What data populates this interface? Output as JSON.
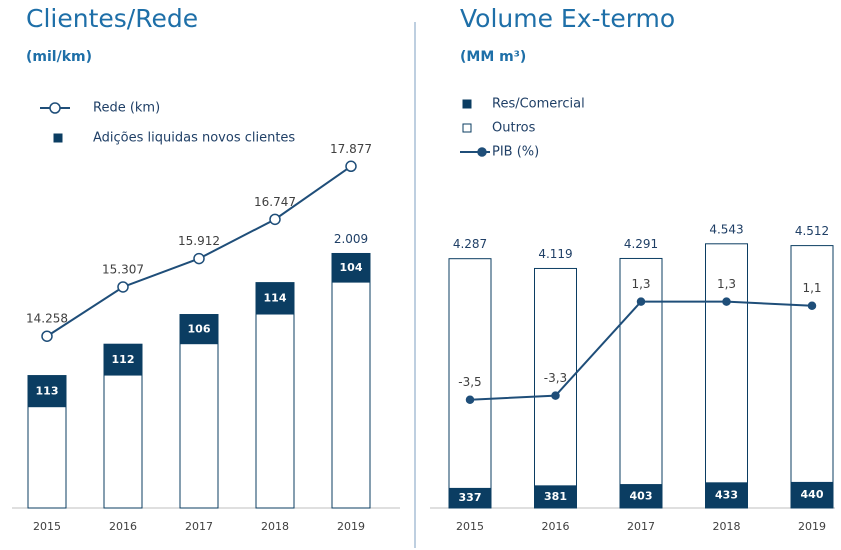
{
  "chart_data": [
    {
      "type": "bar",
      "title": "Clientes/Rede",
      "subtitle": "(mil/km)",
      "categories": [
        "2015",
        "2016",
        "2017",
        "2018",
        "2019"
      ],
      "totals": {
        "color": "#ffffff",
        "values": [
          1573,
          1685,
          1791,
          1905,
          2009
        ],
        "value_labels": [
          null,
          null,
          null,
          null,
          "2.009"
        ]
      },
      "series": [
        {
          "name": "Rede (km)",
          "type": "line",
          "axis": "y2",
          "marker": "hollow",
          "color": "#1f4e79",
          "values": [
            14258,
            15307,
            15912,
            16747,
            17877
          ],
          "value_labels": [
            "14.258",
            "15.307",
            "15.912",
            "16.747",
            "17.877"
          ]
        },
        {
          "name": "Adições liquidas novos clientes",
          "type": "bar",
          "color": "#0b3d62",
          "values": [
            113,
            112,
            106,
            114,
            104
          ]
        }
      ],
      "ylim": [
        1100,
        2450
      ],
      "y2lim": [
        10600,
        18650
      ]
    },
    {
      "type": "bar",
      "title": "Volume Ex-termo",
      "subtitle": "(MM m³)",
      "categories": [
        "2015",
        "2016",
        "2017",
        "2018",
        "2019"
      ],
      "totals": {
        "values": [
          4287,
          4119,
          4291,
          4543,
          4512
        ],
        "value_labels": [
          "4.287",
          "4.119",
          "4.291",
          "4.543",
          "4.512"
        ]
      },
      "series": [
        {
          "name": "Res/Comercial",
          "type": "bar",
          "color": "#0b3d62",
          "values": [
            337,
            381,
            403,
            433,
            440
          ]
        },
        {
          "name": "Outros",
          "type": "bar",
          "color": "#ffffff",
          "values": [
            3950,
            3738,
            3888,
            4110,
            4072
          ]
        },
        {
          "name": "PIB (%)",
          "type": "line",
          "axis": "y2",
          "marker": "filled",
          "color": "#1f4e79",
          "values": [
            -3.5,
            -3.3,
            1.3,
            1.3,
            1.1
          ],
          "value_labels": [
            "-3,5",
            "-3,3",
            "1,3",
            "1,3",
            "1,1"
          ]
        }
      ],
      "ylim": [
        0,
        6500
      ],
      "y2lim": [
        -8.8,
        9.7
      ]
    }
  ]
}
